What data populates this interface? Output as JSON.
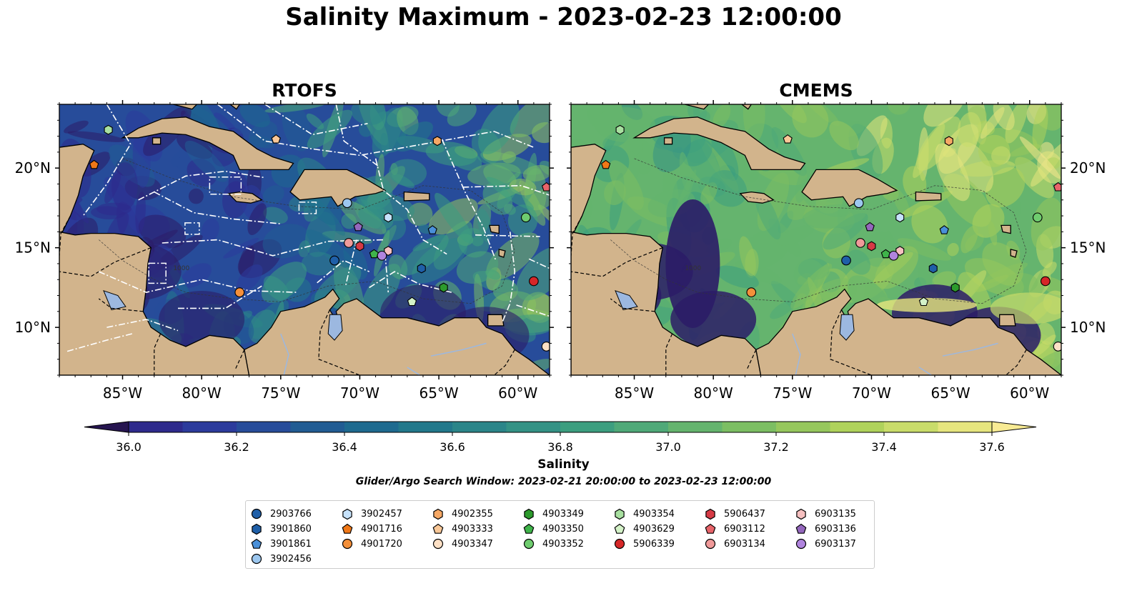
{
  "title": "Salinity Maximum - 2023-02-23 12:00:00",
  "panels": [
    {
      "title": "RTOFS",
      "key": "rtofs"
    },
    {
      "title": "CMEMS",
      "key": "cmems"
    }
  ],
  "map": {
    "lon_range": [
      -89,
      -58
    ],
    "lat_range": [
      7,
      24
    ],
    "lon_ticks": [
      "85°W",
      "80°W",
      "75°W",
      "70°W",
      "65°W",
      "60°W"
    ],
    "lat_ticks": [
      "20°N",
      "15°N",
      "10°N"
    ],
    "contour_label": "1000",
    "land_color": "#d2b48c",
    "lake_color": "#9cb8e0",
    "border_style": "dashed black",
    "eez_style": "white dash-dot (RTOFS panel)"
  },
  "colorbar": {
    "label": "Salinity",
    "min": 36.0,
    "max": 37.6,
    "step": 0.1,
    "extend": "both",
    "ticks": [
      "36.0",
      "36.2",
      "36.4",
      "36.6",
      "36.8",
      "37.0",
      "37.2",
      "37.4",
      "37.6"
    ],
    "colors": [
      "#2b1c67",
      "#2e2a8c",
      "#2c3b9c",
      "#274c9a",
      "#215c93",
      "#1e6a8f",
      "#22788b",
      "#2b8589",
      "#349285",
      "#3c9e7f",
      "#4fa978",
      "#65b46e",
      "#7cbe63",
      "#96c75d",
      "#afd25b",
      "#c9dc6a",
      "#e6e57e",
      "#f5e88c"
    ],
    "cap_low": "#261550",
    "cap_high": "#f8eb94"
  },
  "search_window": "Glider/Argo Search Window: 2023-02-21 20:00:00 to 2023-02-23 12:00:00",
  "legend": [
    {
      "id": "2903766",
      "marker": "circle",
      "color": "#1f5fa8",
      "lon": -71.6,
      "lat": 14.2
    },
    {
      "id": "3901860",
      "marker": "hexagon",
      "color": "#1f5fa8",
      "lon": -66.1,
      "lat": 13.7
    },
    {
      "id": "3901861",
      "marker": "pentagon",
      "color": "#4a90d9",
      "lon": -65.4,
      "lat": 16.1
    },
    {
      "id": "3902456",
      "marker": "circle",
      "color": "#9cc7ef",
      "lon": -70.8,
      "lat": 17.8
    },
    {
      "id": "3902457",
      "marker": "hexagon",
      "color": "#c6e2fb",
      "lon": -68.2,
      "lat": 16.9
    },
    {
      "id": "4901716",
      "marker": "pentagon",
      "color": "#f07818",
      "lon": -86.8,
      "lat": 20.2
    },
    {
      "id": "4901720",
      "marker": "circle",
      "color": "#f4903a",
      "lon": -77.6,
      "lat": 12.2
    },
    {
      "id": "4902355",
      "marker": "hexagon",
      "color": "#f6a865",
      "lon": -65.1,
      "lat": 21.7
    },
    {
      "id": "4903333",
      "marker": "pentagon",
      "color": "#f9c898",
      "lon": -75.3,
      "lat": 21.8
    },
    {
      "id": "4903347",
      "marker": "circle",
      "color": "#fde0c5",
      "lon": -58.2,
      "lat": 8.8
    },
    {
      "id": "4903349",
      "marker": "hexagon",
      "color": "#2c9a2c",
      "lon": -64.7,
      "lat": 12.5
    },
    {
      "id": "4903350",
      "marker": "pentagon",
      "color": "#3fb44a",
      "lon": -69.1,
      "lat": 14.6
    },
    {
      "id": "4903352",
      "marker": "circle",
      "color": "#6fcc6f",
      "lon": -59.5,
      "lat": 16.9
    },
    {
      "id": "4903354",
      "marker": "hexagon",
      "color": "#a8e0a0",
      "lon": -85.9,
      "lat": 22.4
    },
    {
      "id": "4903629",
      "marker": "pentagon",
      "color": "#d4f2c8",
      "lon": -66.7,
      "lat": 11.6
    },
    {
      "id": "5906339",
      "marker": "circle",
      "color": "#d62728",
      "lon": -59.0,
      "lat": 12.9
    },
    {
      "id": "5906437",
      "marker": "hexagon",
      "color": "#d63a45",
      "lon": -70.0,
      "lat": 15.1
    },
    {
      "id": "6903112",
      "marker": "pentagon",
      "color": "#e8646a",
      "lon": -58.2,
      "lat": 18.8
    },
    {
      "id": "6903134",
      "marker": "circle",
      "color": "#f09a9a",
      "lon": -70.7,
      "lat": 15.3
    },
    {
      "id": "6903135",
      "marker": "hexagon",
      "color": "#f6c0c0",
      "lon": -68.2,
      "lat": 14.8
    },
    {
      "id": "6903136",
      "marker": "pentagon",
      "color": "#9467bd",
      "lon": -70.1,
      "lat": 16.3
    },
    {
      "id": "6903137",
      "marker": "circle",
      "color": "#b084de",
      "lon": -68.6,
      "lat": 14.5
    }
  ]
}
